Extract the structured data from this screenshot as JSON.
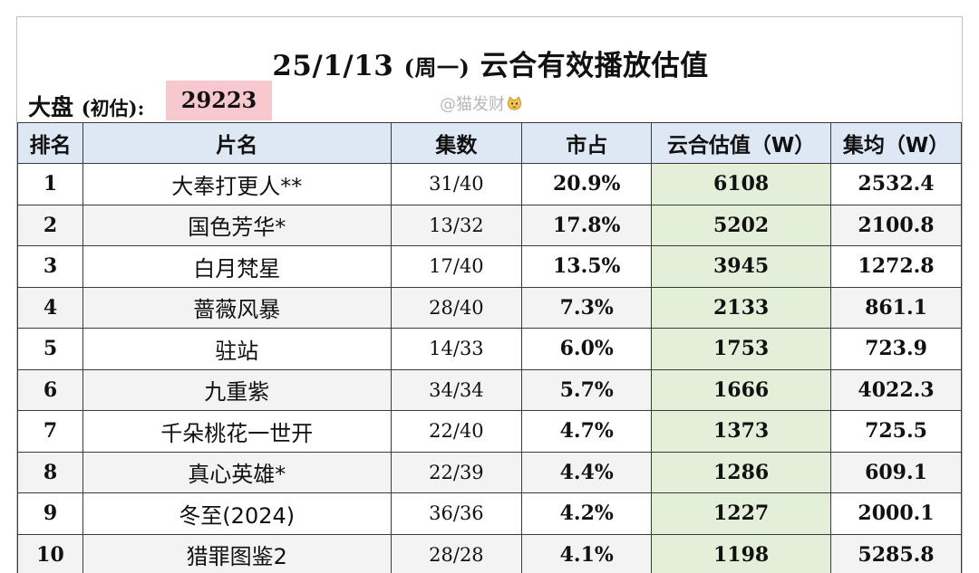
{
  "title": {
    "date": "25/1/13",
    "weekday": "(周一)",
    "text": "云合有效播放估值"
  },
  "market": {
    "label": "大盘",
    "note": "(初估):",
    "value": "29223"
  },
  "watermark": "@猫发财",
  "table": {
    "headers": {
      "rank": "排名",
      "name": "片名",
      "episodes": "集数",
      "share": "市占",
      "estimate": "云合估值（W）",
      "avg": "集均（W）"
    },
    "rows": [
      {
        "rank": "1",
        "name": "大奉打更人**",
        "episodes": "31/40",
        "share": "20.9%",
        "estimate": "6108",
        "avg": "2532.4"
      },
      {
        "rank": "2",
        "name": "国色芳华*",
        "episodes": "13/32",
        "share": "17.8%",
        "estimate": "5202",
        "avg": "2100.8"
      },
      {
        "rank": "3",
        "name": "白月梵星",
        "episodes": "17/40",
        "share": "13.5%",
        "estimate": "3945",
        "avg": "1272.8"
      },
      {
        "rank": "4",
        "name": "蔷薇风暴",
        "episodes": "28/40",
        "share": "7.3%",
        "estimate": "2133",
        "avg": "861.1"
      },
      {
        "rank": "5",
        "name": "驻站",
        "episodes": "14/33",
        "share": "6.0%",
        "estimate": "1753",
        "avg": "723.9"
      },
      {
        "rank": "6",
        "name": "九重紫",
        "episodes": "34/34",
        "share": "5.7%",
        "estimate": "1666",
        "avg": "4022.3"
      },
      {
        "rank": "7",
        "name": "千朵桃花一世开",
        "episodes": "22/40",
        "share": "4.7%",
        "estimate": "1373",
        "avg": "725.5"
      },
      {
        "rank": "8",
        "name": "真心英雄*",
        "episodes": "22/39",
        "share": "4.4%",
        "estimate": "1286",
        "avg": "609.1"
      },
      {
        "rank": "9",
        "name": "冬至(2024)",
        "episodes": "36/36",
        "share": "4.2%",
        "estimate": "1227",
        "avg": "2000.1"
      },
      {
        "rank": "10",
        "name": "猎罪图鉴2",
        "episodes": "28/28",
        "share": "4.1%",
        "estimate": "1198",
        "avg": "5285.8"
      }
    ]
  }
}
